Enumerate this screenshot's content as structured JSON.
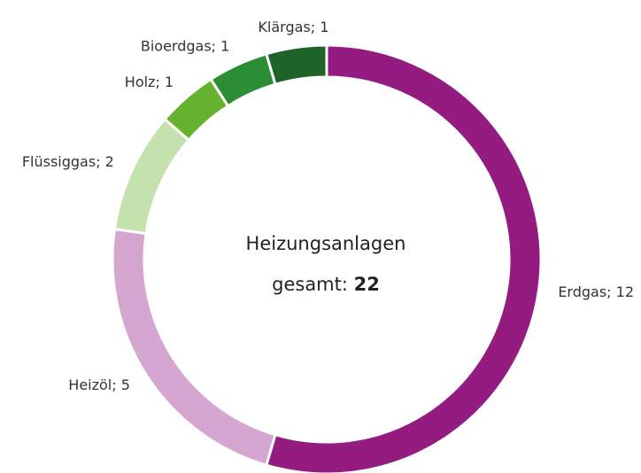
{
  "chart_data": {
    "type": "donut",
    "values": [
      12,
      5,
      2,
      1,
      1,
      1
    ],
    "value_labels": [
      "Erdgas; 12",
      "Heizöl; 5",
      "Flüssiggas; 2",
      "Holz; 1",
      "Bioerdgas; 1",
      "Klärgas; 1"
    ],
    "colors": [
      "#941b80",
      "#d5a6cf",
      "#c3e2ad",
      "#66b22f",
      "#2b8d34",
      "#1e6327"
    ],
    "center_title": "Heizungsanlagen",
    "center_total_label": "gesamt:",
    "center_total": 22
  }
}
